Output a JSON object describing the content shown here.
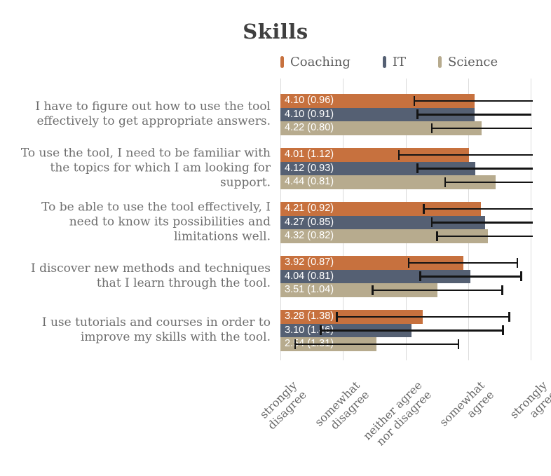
{
  "title": "Skills",
  "legend": {
    "items": [
      {
        "label": "Coaching",
        "color": "#c7713e"
      },
      {
        "label": "IT",
        "color": "#556073"
      },
      {
        "label": "Science",
        "color": "#b7ab8e"
      }
    ]
  },
  "chart_data": {
    "type": "bar",
    "orientation": "horizontal",
    "title": "Skills",
    "value_format": "mean (sd)",
    "error_bars": "mean ± SD",
    "grid": "vertical",
    "categories": [
      "I have to figure out how to use the tool effectively to get appropriate answers.",
      "To use the tool, I need to be familiar with the topics for which I am looking for support.",
      "To be able to use the tool effectively, I need to know its possibilities and limitations well.",
      "I discover new methods and techniques that I learn through the tool.",
      "I use tutorials and courses in order to improve my skills with the tool."
    ],
    "series": [
      {
        "name": "Coaching",
        "color": "#c7713e",
        "means": [
          4.1,
          4.01,
          4.21,
          3.92,
          3.28
        ],
        "sds": [
          0.96,
          1.12,
          0.92,
          0.87,
          1.38
        ],
        "labels": [
          "4.10 (0.96)",
          "4.01 (1.12)",
          "4.21 (0.92)",
          "3.92 (0.87)",
          "3.28 (1.38)"
        ]
      },
      {
        "name": "IT",
        "color": "#556073",
        "means": [
          4.1,
          4.12,
          4.27,
          4.04,
          3.1
        ],
        "sds": [
          0.91,
          0.93,
          0.85,
          0.81,
          1.46
        ],
        "labels": [
          "4.10 (0.91)",
          "4.12 (0.93)",
          "4.27 (0.85)",
          "4.04 (0.81)",
          "3.10 (1.46)"
        ]
      },
      {
        "name": "Science",
        "color": "#b7ab8e",
        "means": [
          4.22,
          4.44,
          4.32,
          3.51,
          2.54
        ],
        "sds": [
          0.8,
          0.81,
          0.82,
          1.04,
          1.31
        ],
        "labels": [
          "4.22 (0.80)",
          "4.44 (0.81)",
          "4.32 (0.82)",
          "3.51 (1.04)",
          "2.54 (1.31)"
        ]
      }
    ],
    "x_axis": {
      "tick_values": [
        1,
        2,
        3,
        4,
        5
      ],
      "tick_labels": [
        "strongly\ndisagree",
        "somewhat\ndisagree",
        "neither agree\nnor disagree",
        "somewhat\nagree",
        "strongly\nagree"
      ],
      "range": [
        1,
        5
      ]
    }
  },
  "colors": {
    "grid": "#dbdbdb",
    "error_bar": "#141414",
    "category_text": "#6e6e6e",
    "tick_text": "#666666",
    "title_text": "#3f3f3f",
    "value_text": "#ffffff"
  }
}
